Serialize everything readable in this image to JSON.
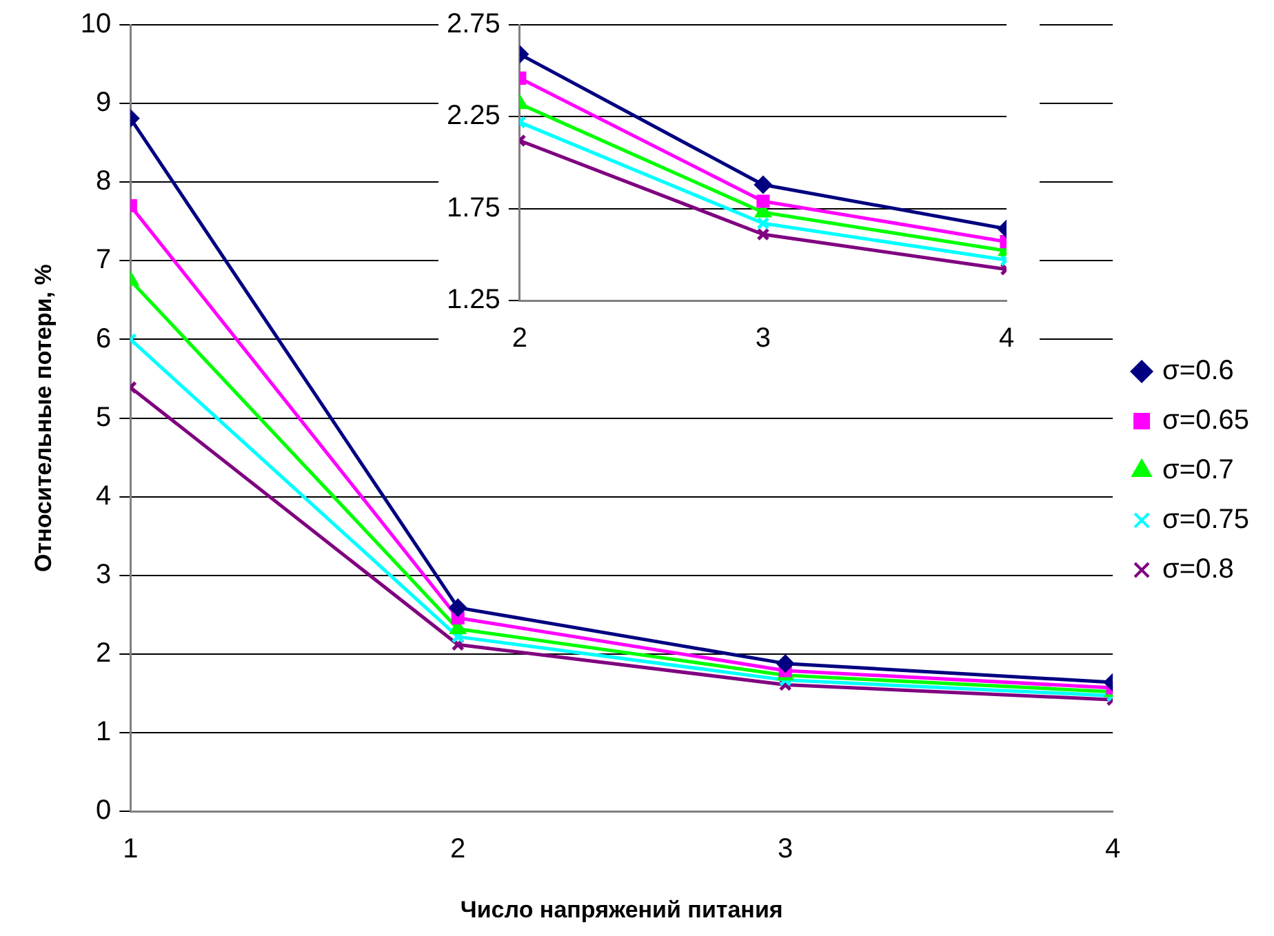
{
  "chart_data": [
    {
      "type": "line",
      "xlabel": "Число напряжений питания",
      "ylabel": "Относительные потери, %",
      "x": [
        1,
        2,
        3,
        4
      ],
      "xlim": [
        1,
        4
      ],
      "xticks": [
        1,
        2,
        3,
        4
      ],
      "ylim": [
        0,
        10
      ],
      "yticks": [
        0,
        1,
        2,
        3,
        4,
        5,
        6,
        7,
        8,
        9,
        10
      ],
      "grid": "y",
      "legend": "right",
      "series": [
        {
          "name": "σ=0.6",
          "color": "#000080",
          "marker": "diamond",
          "values": [
            8.81,
            2.59,
            1.88,
            1.64
          ]
        },
        {
          "name": "σ=0.65",
          "color": "#ff00ff",
          "marker": "square",
          "values": [
            7.7,
            2.46,
            1.79,
            1.57
          ]
        },
        {
          "name": "σ=0.7",
          "color": "#00ff00",
          "marker": "triangle",
          "values": [
            6.75,
            2.32,
            1.73,
            1.52
          ]
        },
        {
          "name": "σ=0.75",
          "color": "#00ffff",
          "marker": "cross",
          "values": [
            6.0,
            2.22,
            1.67,
            1.47
          ]
        },
        {
          "name": "σ=0.8",
          "color": "#800080",
          "marker": "cross",
          "values": [
            5.39,
            2.12,
            1.61,
            1.42
          ]
        }
      ]
    },
    {
      "type": "line",
      "x": [
        2,
        3,
        4
      ],
      "xlim": [
        2,
        4
      ],
      "xticks": [
        2,
        3,
        4
      ],
      "ylim": [
        1.25,
        2.75
      ],
      "yticks": [
        1.25,
        1.75,
        2.25,
        2.75
      ],
      "grid": "y",
      "series": [
        {
          "color": "#000080",
          "marker": "diamond",
          "values": [
            2.59,
            1.88,
            1.64
          ]
        },
        {
          "color": "#ff00ff",
          "marker": "square",
          "values": [
            2.46,
            1.79,
            1.57
          ]
        },
        {
          "color": "#00ff00",
          "marker": "triangle",
          "values": [
            2.32,
            1.73,
            1.52
          ]
        },
        {
          "color": "#00ffff",
          "marker": "cross",
          "values": [
            2.22,
            1.67,
            1.47
          ]
        },
        {
          "color": "#800080",
          "marker": "cross",
          "values": [
            2.12,
            1.61,
            1.42
          ]
        }
      ]
    }
  ]
}
